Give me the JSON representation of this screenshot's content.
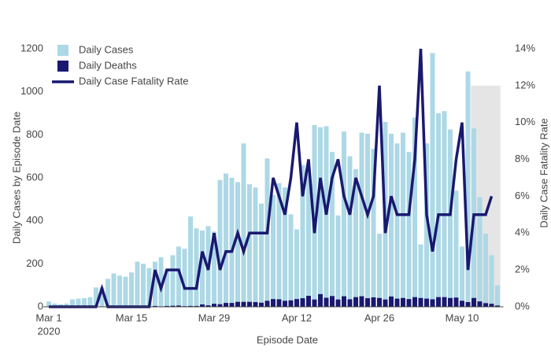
{
  "chart_data": {
    "type": "bar",
    "barmode": "overlay",
    "x_title": "Episode Date",
    "y_title": "Daily Cases by Episode Date",
    "y2_title": "Daily Case Fatality Rate",
    "x": [
      "2020-03-01",
      "2020-03-02",
      "2020-03-03",
      "2020-03-04",
      "2020-03-05",
      "2020-03-06",
      "2020-03-07",
      "2020-03-08",
      "2020-03-09",
      "2020-03-10",
      "2020-03-11",
      "2020-03-12",
      "2020-03-13",
      "2020-03-14",
      "2020-03-15",
      "2020-03-16",
      "2020-03-17",
      "2020-03-18",
      "2020-03-19",
      "2020-03-20",
      "2020-03-21",
      "2020-03-22",
      "2020-03-23",
      "2020-03-24",
      "2020-03-25",
      "2020-03-26",
      "2020-03-27",
      "2020-03-28",
      "2020-03-29",
      "2020-03-30",
      "2020-03-31",
      "2020-04-01",
      "2020-04-02",
      "2020-04-03",
      "2020-04-04",
      "2020-04-05",
      "2020-04-06",
      "2020-04-07",
      "2020-04-08",
      "2020-04-09",
      "2020-04-10",
      "2020-04-11",
      "2020-04-12",
      "2020-04-13",
      "2020-04-14",
      "2020-04-15",
      "2020-04-16",
      "2020-04-17",
      "2020-04-18",
      "2020-04-19",
      "2020-04-20",
      "2020-04-21",
      "2020-04-22",
      "2020-04-23",
      "2020-04-24",
      "2020-04-25",
      "2020-04-26",
      "2020-04-27",
      "2020-04-28",
      "2020-04-29",
      "2020-04-30",
      "2020-05-01",
      "2020-05-02",
      "2020-05-03",
      "2020-05-04",
      "2020-05-05",
      "2020-05-06",
      "2020-05-07",
      "2020-05-08",
      "2020-05-09",
      "2020-05-10",
      "2020-05-11",
      "2020-05-12",
      "2020-05-13",
      "2020-05-14",
      "2020-05-15",
      "2020-05-16"
    ],
    "series": [
      {
        "name": "Daily Cases",
        "type": "bar",
        "color": "#add8e6",
        "values": [
          25,
          15,
          12,
          15,
          35,
          38,
          40,
          45,
          90,
          90,
          130,
          155,
          145,
          140,
          160,
          210,
          200,
          180,
          210,
          230,
          175,
          240,
          280,
          270,
          420,
          365,
          355,
          375,
          350,
          590,
          620,
          600,
          580,
          760,
          570,
          555,
          480,
          690,
          520,
          575,
          555,
          430,
          360,
          660,
          640,
          845,
          835,
          840,
          720,
          425,
          815,
          700,
          640,
          810,
          805,
          735,
          340,
          860,
          805,
          760,
          810,
          720,
          880,
          290,
          760,
          1180,
          900,
          910,
          825,
          540,
          280,
          1095,
          830,
          510,
          340,
          240,
          100
        ]
      },
      {
        "name": "Daily Deaths",
        "type": "bar",
        "color": "#191970",
        "values": [
          0,
          0,
          0,
          0,
          0,
          0,
          0,
          0,
          0,
          1,
          0,
          0,
          0,
          0,
          0,
          0,
          0,
          0,
          4,
          2,
          4,
          5,
          6,
          3,
          4,
          4,
          11,
          7,
          14,
          12,
          18,
          18,
          23,
          23,
          23,
          22,
          19,
          28,
          36,
          35,
          28,
          30,
          36,
          40,
          51,
          34,
          59,
          42,
          50,
          34,
          49,
          35,
          45,
          49,
          40,
          44,
          41,
          34,
          48,
          38,
          41,
          36,
          45,
          41,
          38,
          35,
          45,
          45,
          41,
          43,
          28,
          22,
          41,
          25,
          17,
          14,
          6
        ]
      },
      {
        "name": "Daily Case Fatality Rate",
        "type": "line",
        "axis": "y2",
        "color": "#191970",
        "values": [
          0,
          0,
          0,
          0,
          0,
          0,
          0,
          0,
          0,
          1,
          0,
          0,
          0,
          0,
          0,
          0,
          0,
          0,
          2,
          1,
          2,
          2,
          2,
          1,
          1,
          1,
          3,
          2,
          4,
          2,
          3,
          3,
          4,
          3,
          4,
          4,
          4,
          4,
          7,
          6,
          5,
          7,
          10,
          6,
          8,
          4,
          7,
          5,
          7,
          8,
          6,
          5,
          7,
          6,
          5,
          6,
          12,
          4,
          6,
          5,
          5,
          5,
          8,
          14,
          5,
          3,
          5,
          5,
          5,
          8,
          10,
          2,
          5,
          5,
          5,
          6,
          null
        ]
      }
    ],
    "xticks": [
      {
        "value": "2020-03-01",
        "label": "Mar 1"
      },
      {
        "value": "2020-03-15",
        "label": "Mar 15"
      },
      {
        "value": "2020-03-29",
        "label": "Mar 29"
      },
      {
        "value": "2020-04-12",
        "label": "Apr 12"
      },
      {
        "value": "2020-04-26",
        "label": "Apr 26"
      },
      {
        "value": "2020-05-10",
        "label": "May 10"
      }
    ],
    "x_year_label": "2020",
    "ylim": [
      0,
      1200
    ],
    "yticks": [
      0,
      200,
      400,
      600,
      800,
      1000,
      1200
    ],
    "y2lim": [
      0,
      14
    ],
    "y2ticks": [
      {
        "value": 0,
        "label": "0%"
      },
      {
        "value": 2,
        "label": "2%"
      },
      {
        "value": 4,
        "label": "4%"
      },
      {
        "value": 6,
        "label": "6%"
      },
      {
        "value": 8,
        "label": "8%"
      },
      {
        "value": 10,
        "label": "10%"
      },
      {
        "value": 12,
        "label": "12%"
      },
      {
        "value": 14,
        "label": "14%"
      }
    ],
    "shaded_region": {
      "x": [
        "2020-05-12",
        "2020-05-16"
      ],
      "y2": [
        0,
        12
      ],
      "color": "#e5e5e5"
    },
    "legend": "top-left",
    "grid": false
  }
}
